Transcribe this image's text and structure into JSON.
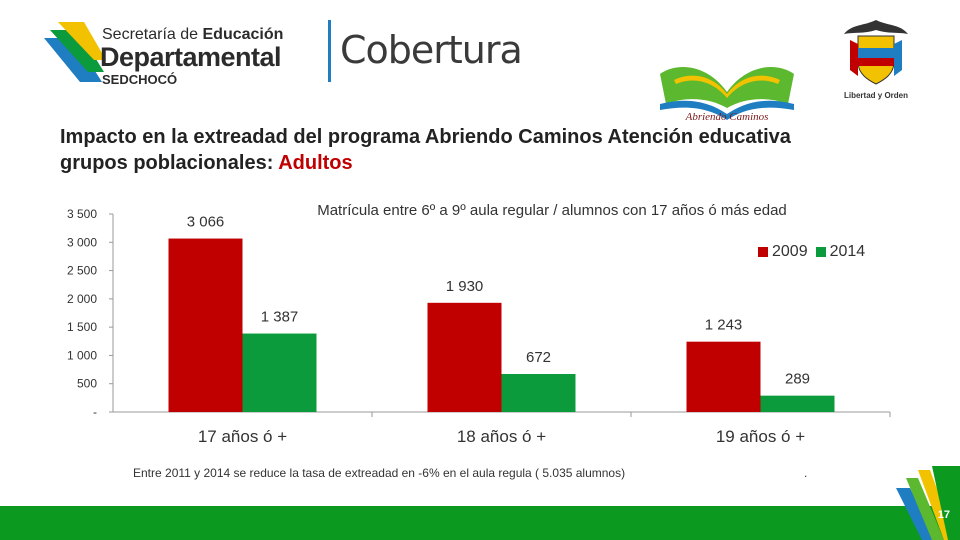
{
  "header": {
    "org_line1_prefix": "Secretaría de ",
    "org_line1_bold": "Educación",
    "org_line2": "Departamental",
    "org_line3": "SEDCHOCÓ",
    "section": "Cobertura",
    "program_logo_text": "Abriendo Caminos",
    "crest_motto": "Libertad y Orden"
  },
  "title": {
    "main": "Impacto en la extreadad del programa Abriendo Caminos Atención educativa grupos poblacionales: ",
    "accent": "Adultos"
  },
  "chart_data": {
    "type": "bar",
    "title": "Matrícula  entre 6º  a 9º  aula regular  /  alumnos con 17 años ó más edad",
    "categories": [
      "17 años  ó +",
      "18 años  ó +",
      "19 años  ó +"
    ],
    "series": [
      {
        "name": "2009",
        "color": "#c00000",
        "values": [
          3066,
          1930,
          1243
        ],
        "labels": [
          "3 066",
          "1 930",
          "1 243"
        ]
      },
      {
        "name": "2014",
        "color": "#0b9a3c",
        "values": [
          1387,
          672,
          289
        ],
        "labels": [
          "1 387",
          "672",
          "289"
        ]
      }
    ],
    "ylim": [
      0,
      3500
    ],
    "yticks": [
      0,
      500,
      1000,
      1500,
      2000,
      2500,
      3000,
      3500
    ],
    "ytick_labels": [
      "-",
      "500",
      "1 000",
      "1 500",
      "2 000",
      "2 500",
      "3 000",
      "3 500"
    ],
    "xlabel": "",
    "ylabel": "",
    "grid": false,
    "legend_position": "top-right"
  },
  "footnote": "Entre 2011  y 2014 se reduce la tasa de extreadad en -6% en el aula regula ( 5.035 alumnos)",
  "footnote_end": ".",
  "page_number": "17",
  "colors": {
    "accent_red": "#c00000",
    "accent_green": "#0b9a3c",
    "footer_green": "#0b9a1f",
    "divider_blue": "#1f7dc2"
  }
}
